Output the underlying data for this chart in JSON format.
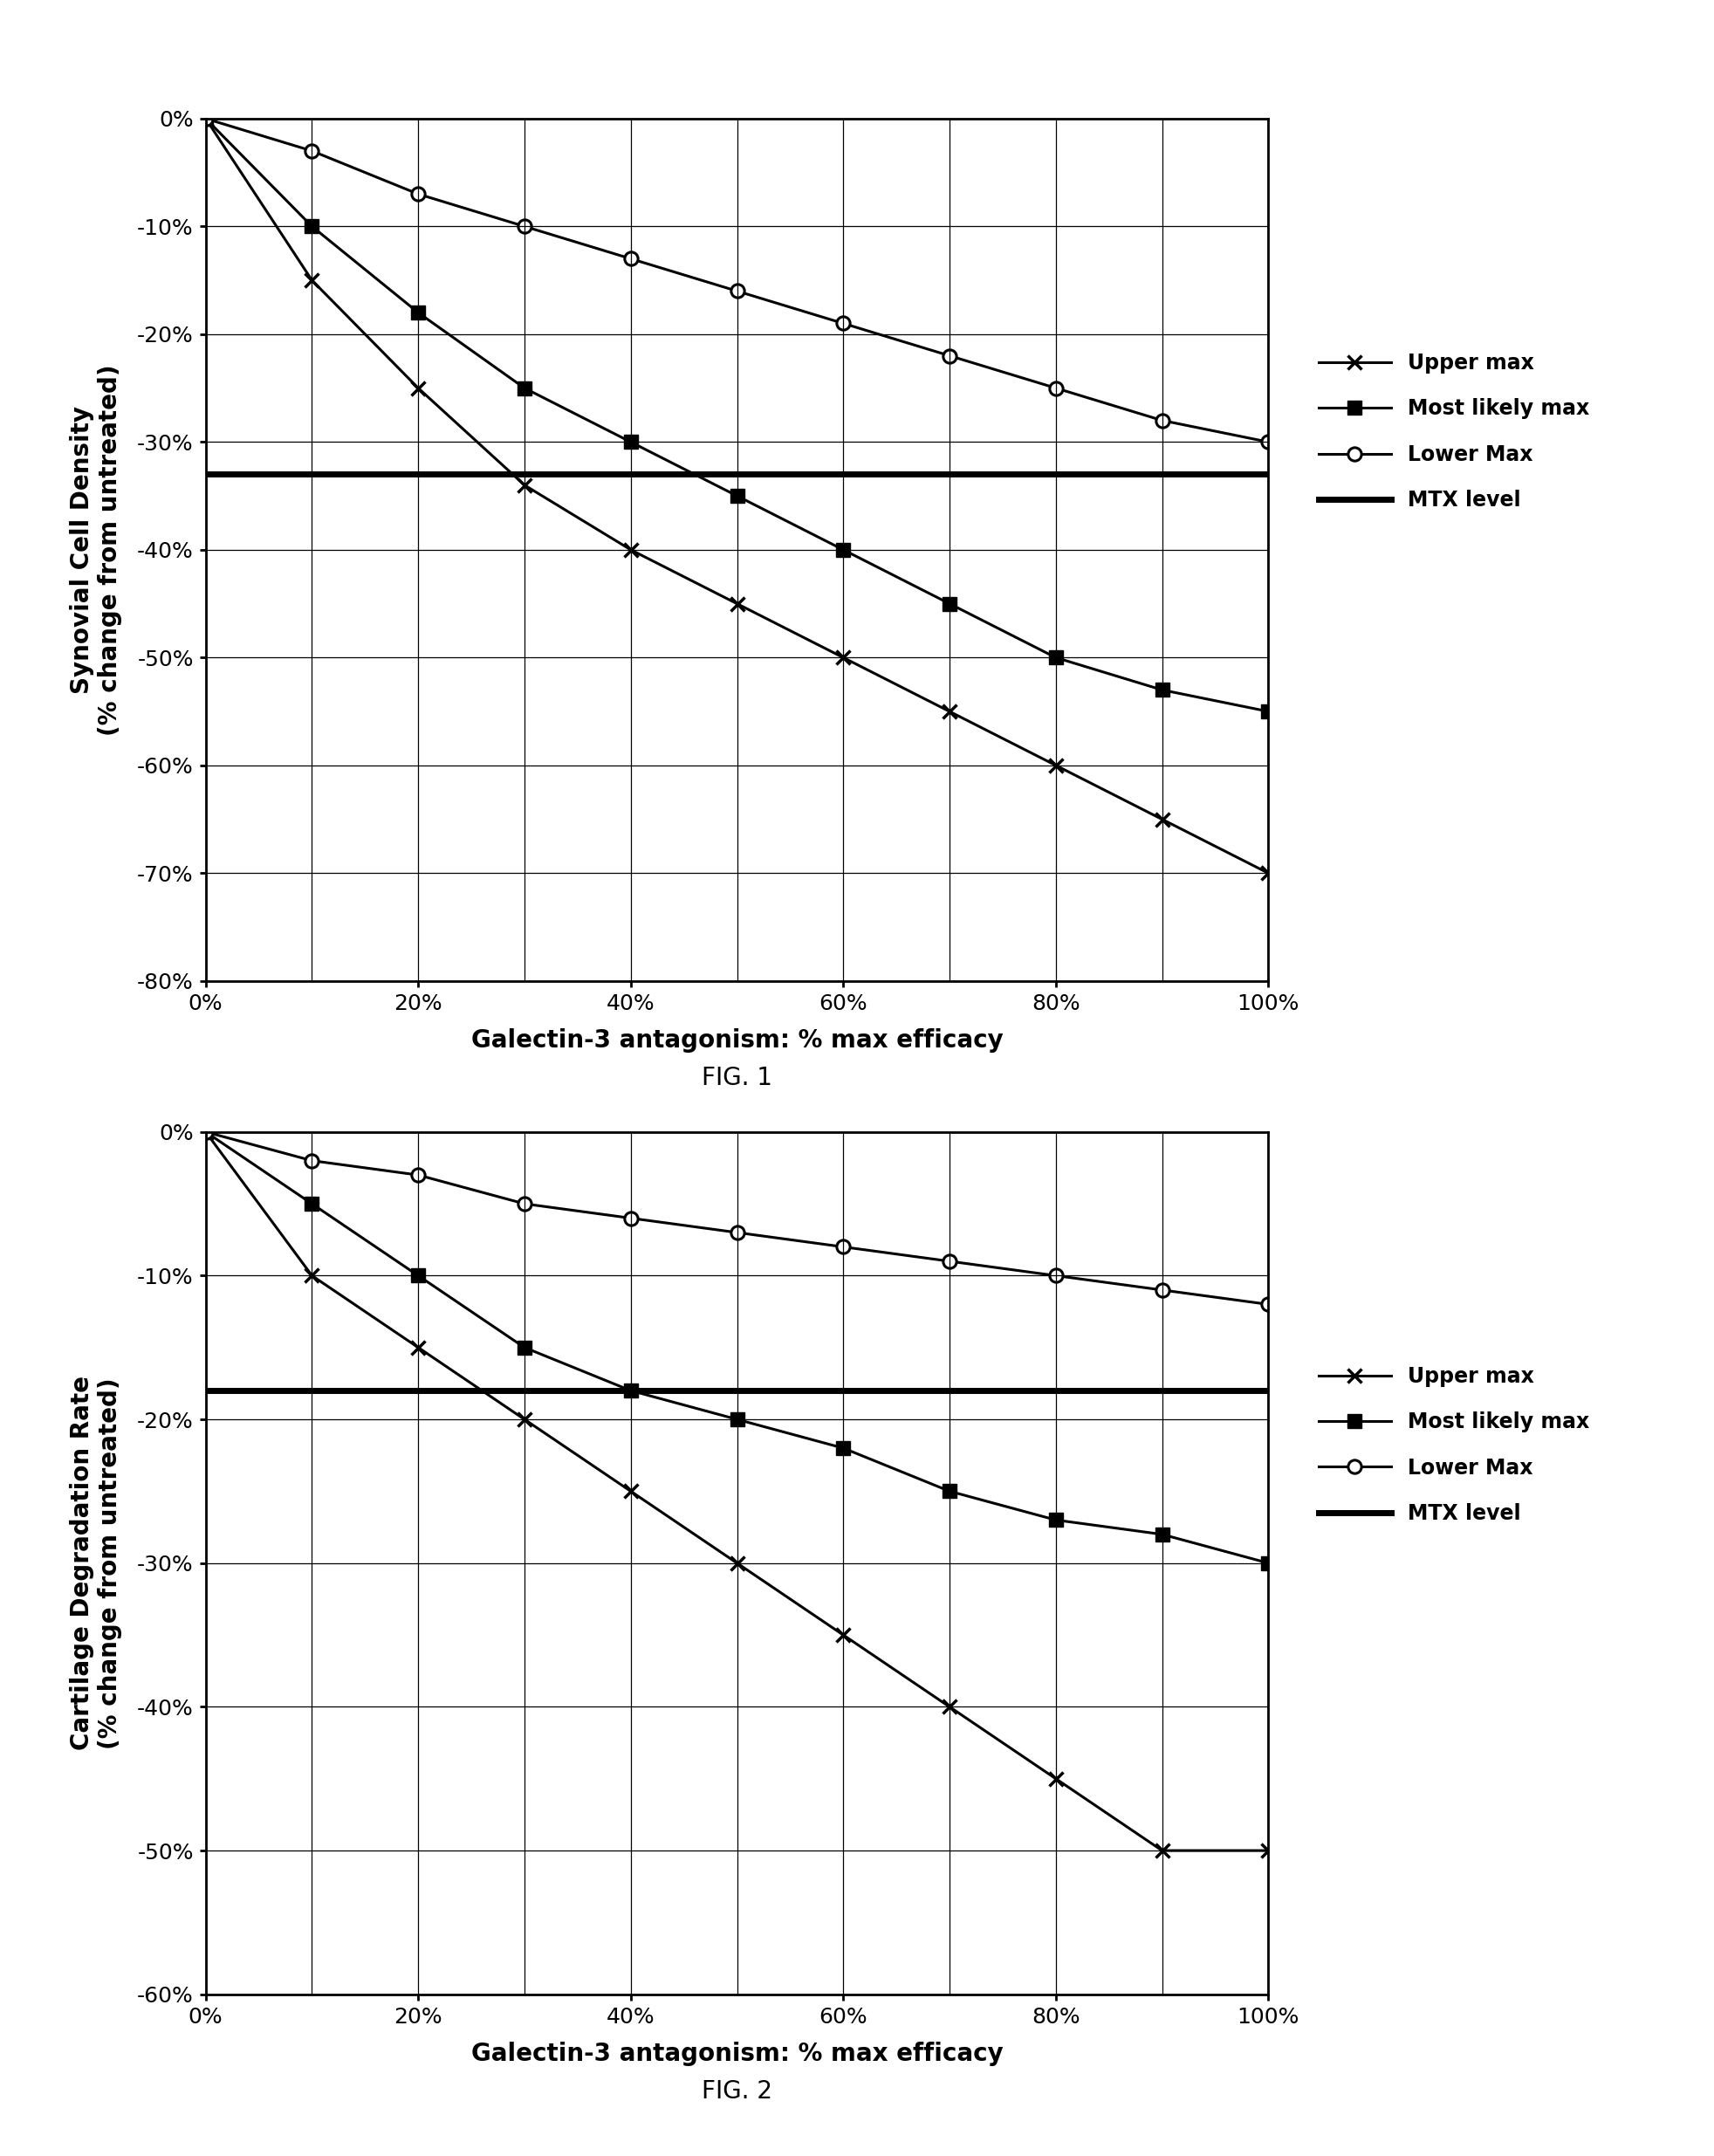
{
  "fig1": {
    "title": "FIG. 1",
    "ylabel": "Synovial Cell Density\n(% change from untreated)",
    "xlabel": "Galectin-3 antagonism: % max efficacy",
    "xlim": [
      0,
      100
    ],
    "ylim": [
      -80,
      0
    ],
    "yticks_major": [
      0,
      -10,
      -20,
      -30,
      -40,
      -50,
      -60,
      -70,
      -80
    ],
    "xticks_major": [
      0,
      20,
      40,
      60,
      80,
      100
    ],
    "xticks_minor": [
      10,
      30,
      50,
      70,
      90
    ],
    "mtx_level": -33,
    "upper_max_x": [
      0,
      10,
      20,
      30,
      40,
      50,
      60,
      70,
      80,
      90,
      100
    ],
    "upper_max_y": [
      0,
      -15,
      -25,
      -34,
      -40,
      -45,
      -50,
      -55,
      -60,
      -65,
      -70
    ],
    "most_likely_x": [
      0,
      10,
      20,
      30,
      40,
      50,
      60,
      70,
      80,
      90,
      100
    ],
    "most_likely_y": [
      0,
      -10,
      -18,
      -25,
      -30,
      -35,
      -40,
      -45,
      -50,
      -53,
      -55
    ],
    "lower_max_x": [
      0,
      10,
      20,
      30,
      40,
      50,
      60,
      70,
      80,
      90,
      100
    ],
    "lower_max_y": [
      0,
      -3,
      -7,
      -10,
      -13,
      -16,
      -19,
      -22,
      -25,
      -28,
      -30
    ]
  },
  "fig2": {
    "title": "FIG. 2",
    "ylabel": "Cartilage Degradation Rate\n(% change from untreated)",
    "xlabel": "Galectin-3 antagonism: % max efficacy",
    "xlim": [
      0,
      100
    ],
    "ylim": [
      -60,
      0
    ],
    "yticks_major": [
      0,
      -10,
      -20,
      -30,
      -40,
      -50,
      -60
    ],
    "xticks_major": [
      0,
      20,
      40,
      60,
      80,
      100
    ],
    "xticks_minor": [
      10,
      30,
      50,
      70,
      90
    ],
    "mtx_level": -18,
    "upper_max_x": [
      0,
      10,
      20,
      30,
      40,
      50,
      60,
      70,
      80,
      90,
      100
    ],
    "upper_max_y": [
      0,
      -10,
      -15,
      -20,
      -25,
      -30,
      -35,
      -40,
      -45,
      -50,
      -50
    ],
    "most_likely_x": [
      0,
      10,
      20,
      30,
      40,
      50,
      60,
      70,
      80,
      90,
      100
    ],
    "most_likely_y": [
      0,
      -5,
      -10,
      -15,
      -18,
      -20,
      -22,
      -25,
      -27,
      -28,
      -30
    ],
    "lower_max_x": [
      0,
      10,
      20,
      30,
      40,
      50,
      60,
      70,
      80,
      90,
      100
    ],
    "lower_max_y": [
      0,
      -2,
      -3,
      -5,
      -6,
      -7,
      -8,
      -9,
      -10,
      -11,
      -12
    ]
  },
  "legend_labels": [
    "Upper max",
    "Most likely max",
    "Lower Max",
    "MTX level"
  ],
  "line_color": "#000000",
  "bg_color": "#ffffff"
}
